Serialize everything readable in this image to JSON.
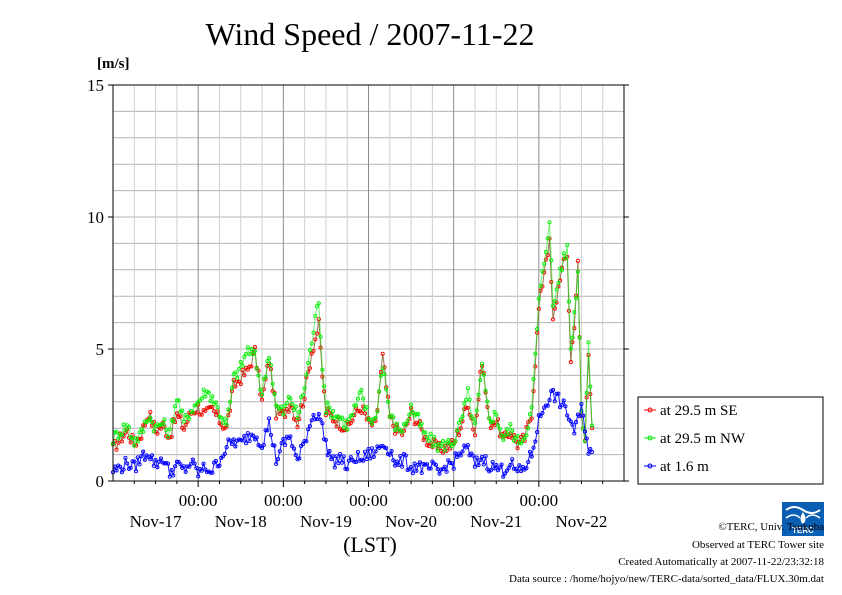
{
  "chart_data": {
    "type": "line",
    "title": "Wind Speed / 2007-11-22",
    "ylabel": "[m/s]",
    "xlabel": "(LST)",
    "ylim": [
      0,
      15
    ],
    "yticks": [
      0,
      5,
      10,
      15
    ],
    "xlim_hours": [
      0,
      144
    ],
    "x_tick_times": [
      "00:00",
      "00:00",
      "00:00",
      "00:00",
      "00:00"
    ],
    "x_tick_dates": [
      "Nov-17",
      "Nov-18",
      "Nov-19",
      "Nov-20",
      "Nov-21",
      "Nov-22"
    ],
    "grid": true,
    "legend_position": "right",
    "series": [
      {
        "name": "at 29.5 m SE",
        "color": "#ff0000",
        "keypoints": [
          [
            0,
            1.2
          ],
          [
            2,
            1.6
          ],
          [
            4,
            1.9
          ],
          [
            6,
            1.4
          ],
          [
            8,
            1.8
          ],
          [
            10,
            2.6
          ],
          [
            12,
            1.9
          ],
          [
            14,
            2.1
          ],
          [
            16,
            1.7
          ],
          [
            18,
            2.5
          ],
          [
            20,
            2.0
          ],
          [
            22,
            2.6
          ],
          [
            24,
            2.8
          ],
          [
            26,
            2.5
          ],
          [
            28,
            2.7
          ],
          [
            30,
            2.3
          ],
          [
            32,
            2.0
          ],
          [
            34,
            3.6
          ],
          [
            36,
            3.9
          ],
          [
            38,
            4.2
          ],
          [
            40,
            4.9
          ],
          [
            42,
            3.0
          ],
          [
            44,
            4.6
          ],
          [
            46,
            2.6
          ],
          [
            48,
            2.5
          ],
          [
            50,
            3.0
          ],
          [
            52,
            2.2
          ],
          [
            54,
            3.3
          ],
          [
            56,
            4.9
          ],
          [
            58,
            5.9
          ],
          [
            59,
            4.0
          ],
          [
            60,
            2.6
          ],
          [
            62,
            2.4
          ],
          [
            64,
            2.2
          ],
          [
            66,
            2.0
          ],
          [
            68,
            2.5
          ],
          [
            70,
            2.8
          ],
          [
            72,
            2.2
          ],
          [
            74,
            2.1
          ],
          [
            76,
            4.7
          ],
          [
            78,
            2.4
          ],
          [
            80,
            1.9
          ],
          [
            82,
            1.8
          ],
          [
            84,
            2.6
          ],
          [
            86,
            2.2
          ],
          [
            88,
            1.6
          ],
          [
            90,
            1.4
          ],
          [
            92,
            1.2
          ],
          [
            94,
            1.3
          ],
          [
            96,
            1.4
          ],
          [
            98,
            2.1
          ],
          [
            100,
            3.0
          ],
          [
            102,
            1.8
          ],
          [
            104,
            4.6
          ],
          [
            106,
            2.2
          ],
          [
            108,
            2.3
          ],
          [
            110,
            1.5
          ],
          [
            112,
            1.9
          ],
          [
            114,
            1.4
          ],
          [
            116,
            1.6
          ],
          [
            118,
            2.6
          ],
          [
            120,
            6.5
          ],
          [
            122,
            8.5
          ],
          [
            123,
            9.0
          ],
          [
            124,
            6.0
          ],
          [
            126,
            7.8
          ],
          [
            128,
            8.6
          ],
          [
            129,
            4.5
          ],
          [
            130,
            6.0
          ],
          [
            131,
            8.2
          ],
          [
            132,
            2.5
          ],
          [
            133,
            1.5
          ],
          [
            134,
            5.0
          ],
          [
            135,
            2.0
          ]
        ]
      },
      {
        "name": "at 29.5 m NW",
        "color": "#00ee00",
        "keypoints": [
          [
            0,
            1.6
          ],
          [
            2,
            1.9
          ],
          [
            4,
            2.1
          ],
          [
            6,
            1.5
          ],
          [
            8,
            1.8
          ],
          [
            10,
            2.5
          ],
          [
            12,
            2.0
          ],
          [
            14,
            2.2
          ],
          [
            16,
            1.8
          ],
          [
            18,
            3.2
          ],
          [
            20,
            2.2
          ],
          [
            22,
            2.7
          ],
          [
            24,
            3.0
          ],
          [
            26,
            3.4
          ],
          [
            28,
            3.2
          ],
          [
            30,
            2.6
          ],
          [
            32,
            2.1
          ],
          [
            34,
            3.9
          ],
          [
            36,
            4.3
          ],
          [
            38,
            5.0
          ],
          [
            40,
            4.7
          ],
          [
            42,
            3.3
          ],
          [
            44,
            4.9
          ],
          [
            46,
            2.8
          ],
          [
            48,
            2.6
          ],
          [
            50,
            3.2
          ],
          [
            52,
            2.4
          ],
          [
            54,
            3.6
          ],
          [
            56,
            5.3
          ],
          [
            58,
            6.9
          ],
          [
            59,
            4.4
          ],
          [
            60,
            2.8
          ],
          [
            62,
            2.6
          ],
          [
            64,
            2.4
          ],
          [
            66,
            2.1
          ],
          [
            68,
            2.7
          ],
          [
            70,
            3.3
          ],
          [
            72,
            2.4
          ],
          [
            74,
            2.3
          ],
          [
            76,
            4.5
          ],
          [
            78,
            2.5
          ],
          [
            80,
            2.0
          ],
          [
            82,
            2.0
          ],
          [
            84,
            2.8
          ],
          [
            86,
            2.3
          ],
          [
            88,
            1.7
          ],
          [
            90,
            1.5
          ],
          [
            92,
            1.3
          ],
          [
            94,
            1.4
          ],
          [
            96,
            1.5
          ],
          [
            98,
            2.2
          ],
          [
            100,
            3.3
          ],
          [
            102,
            2.0
          ],
          [
            104,
            4.3
          ],
          [
            106,
            2.4
          ],
          [
            108,
            2.5
          ],
          [
            110,
            1.6
          ],
          [
            112,
            2.0
          ],
          [
            114,
            1.5
          ],
          [
            116,
            1.7
          ],
          [
            118,
            2.7
          ],
          [
            120,
            6.8
          ],
          [
            122,
            8.8
          ],
          [
            123,
            10.0
          ],
          [
            124,
            6.5
          ],
          [
            126,
            8.0
          ],
          [
            128,
            8.8
          ],
          [
            129,
            5.0
          ],
          [
            130,
            6.3
          ],
          [
            131,
            8.0
          ],
          [
            132,
            2.8
          ],
          [
            133,
            1.6
          ],
          [
            134,
            5.2
          ],
          [
            135,
            2.1
          ]
        ]
      },
      {
        "name": "at 1.6 m",
        "color": "#0000ff",
        "keypoints": [
          [
            0,
            0.4
          ],
          [
            2,
            0.5
          ],
          [
            4,
            0.7
          ],
          [
            6,
            0.5
          ],
          [
            8,
            0.9
          ],
          [
            10,
            1.1
          ],
          [
            12,
            0.6
          ],
          [
            14,
            0.9
          ],
          [
            16,
            0.3
          ],
          [
            18,
            0.6
          ],
          [
            20,
            0.4
          ],
          [
            22,
            0.7
          ],
          [
            24,
            0.3
          ],
          [
            26,
            0.5
          ],
          [
            28,
            0.4
          ],
          [
            30,
            0.8
          ],
          [
            32,
            1.3
          ],
          [
            34,
            1.5
          ],
          [
            36,
            1.4
          ],
          [
            38,
            1.7
          ],
          [
            40,
            1.8
          ],
          [
            42,
            1.4
          ],
          [
            44,
            2.2
          ],
          [
            46,
            0.8
          ],
          [
            48,
            1.4
          ],
          [
            50,
            1.7
          ],
          [
            52,
            0.7
          ],
          [
            54,
            1.5
          ],
          [
            56,
            2.4
          ],
          [
            58,
            2.6
          ],
          [
            60,
            1.4
          ],
          [
            62,
            0.7
          ],
          [
            64,
            0.9
          ],
          [
            66,
            0.5
          ],
          [
            68,
            0.9
          ],
          [
            70,
            0.8
          ],
          [
            72,
            1.0
          ],
          [
            74,
            1.1
          ],
          [
            76,
            1.4
          ],
          [
            78,
            1.2
          ],
          [
            80,
            0.6
          ],
          [
            82,
            0.8
          ],
          [
            84,
            0.5
          ],
          [
            86,
            0.6
          ],
          [
            88,
            0.4
          ],
          [
            90,
            0.5
          ],
          [
            92,
            0.3
          ],
          [
            94,
            0.6
          ],
          [
            96,
            0.7
          ],
          [
            98,
            1.1
          ],
          [
            100,
            1.2
          ],
          [
            102,
            0.6
          ],
          [
            104,
            0.9
          ],
          [
            106,
            0.6
          ],
          [
            108,
            0.5
          ],
          [
            110,
            0.4
          ],
          [
            112,
            0.7
          ],
          [
            114,
            0.3
          ],
          [
            116,
            0.5
          ],
          [
            118,
            1.0
          ],
          [
            120,
            2.3
          ],
          [
            122,
            3.0
          ],
          [
            124,
            3.3
          ],
          [
            126,
            3.0
          ],
          [
            128,
            2.6
          ],
          [
            130,
            1.9
          ],
          [
            132,
            2.7
          ],
          [
            133,
            2.1
          ],
          [
            134,
            1.2
          ],
          [
            135,
            1.1
          ]
        ]
      }
    ]
  },
  "credits": {
    "copyright": "©TERC, Univ. Tsukuba",
    "observed": "Observed at TERC Tower site",
    "created": "Created Automatically at 2007-11-22/23:32:18",
    "source": "Data source : /home/hojyo/new/TERC-data/sorted_data/FLUX.30m.dat"
  },
  "logo": {
    "text": "TERC"
  }
}
